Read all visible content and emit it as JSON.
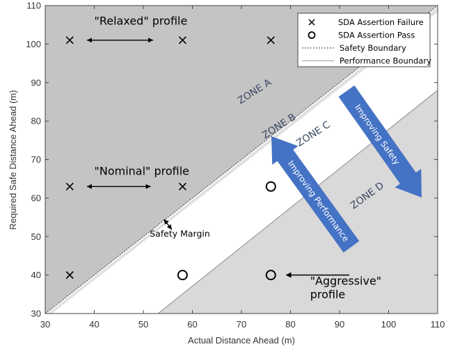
{
  "chart_data": {
    "type": "scatter",
    "xlabel": "Actual Distance Ahead (m)",
    "ylabel": "Required Safe Distance Ahead (m)",
    "xlim": [
      30,
      110
    ],
    "ylim": [
      30,
      110
    ],
    "xticks": [
      "30",
      "40",
      "50",
      "60",
      "70",
      "80",
      "90",
      "100",
      "110"
    ],
    "yticks": [
      "30",
      "40",
      "50",
      "60",
      "70",
      "80",
      "90",
      "100",
      "110"
    ],
    "grid": false,
    "legend_position": "top-right",
    "series": [
      {
        "name": "SDA Assertion Failure",
        "marker": "x",
        "points": [
          [
            35,
            101
          ],
          [
            58,
            101
          ],
          [
            76,
            101
          ],
          [
            35,
            63
          ],
          [
            58,
            63
          ],
          [
            35,
            40
          ]
        ]
      },
      {
        "name": "SDA Assertion Pass",
        "marker": "o",
        "points": [
          [
            76,
            63
          ],
          [
            58,
            40
          ],
          [
            76,
            40
          ]
        ]
      }
    ],
    "lines": [
      {
        "name": "Safety Boundary",
        "style": "dotted",
        "from": [
          30,
          30
        ],
        "to": [
          110,
          110
        ]
      },
      {
        "name": "Performance Boundary",
        "style": "solid",
        "from": [
          53,
          30
        ],
        "to": [
          110,
          88
        ]
      }
    ],
    "zones": [
      {
        "label": "ZONE A",
        "x": 73,
        "y": 87,
        "rotation": -33
      },
      {
        "label": "ZONE B",
        "x": 78,
        "y": 78,
        "rotation": -33
      },
      {
        "label": "ZONE C",
        "x": 85,
        "y": 76,
        "rotation": -33
      },
      {
        "label": "ZONE D",
        "x": 96,
        "y": 60,
        "rotation": -36
      }
    ],
    "annotations": [
      {
        "text": "\"Relaxed\" profile",
        "x": 40,
        "y": 105
      },
      {
        "text": "\"Nominal\" profile",
        "x": 40,
        "y": 66
      },
      {
        "text": "Safety Margin",
        "x": 53,
        "y": 50
      },
      {
        "text": "\"Aggressive\"",
        "x": 84,
        "y": 37.5
      },
      {
        "text": "profile",
        "x": 84,
        "y": 34
      }
    ],
    "arrows": [
      {
        "text": "Improving Safety"
      },
      {
        "text": "Improving Performance"
      }
    ],
    "colors": {
      "unsafe_region": "#c4c4c4",
      "margin_region": "#e0e0e0",
      "performance_region": "#d9d9d9",
      "feasible_region": "#ffffff",
      "blue_arrow": "#4472c4",
      "zone_text": "#3c4a66"
    }
  }
}
